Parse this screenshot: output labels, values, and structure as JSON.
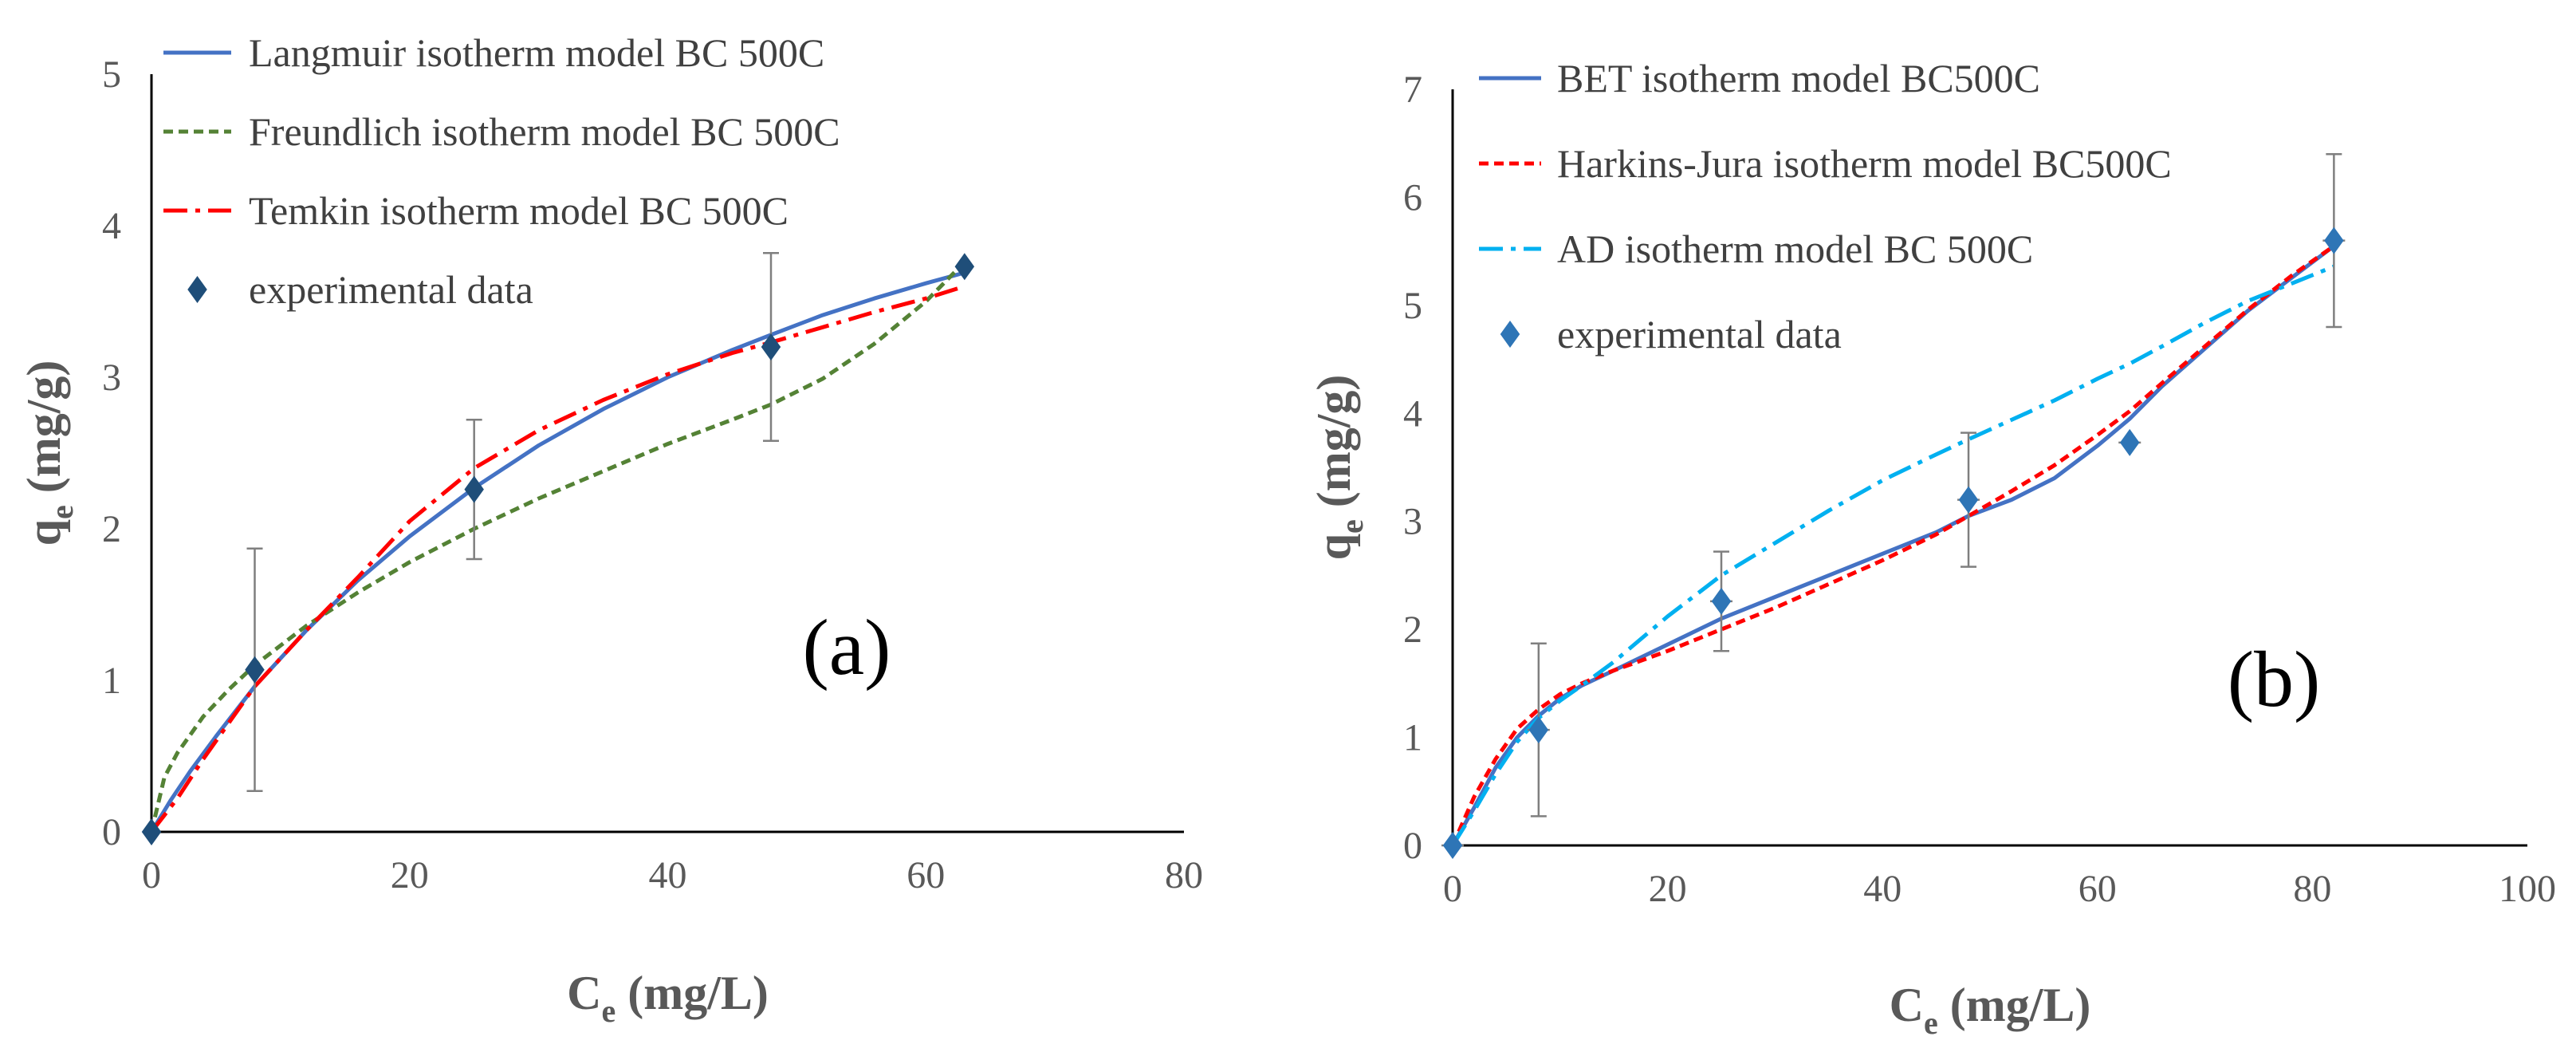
{
  "chart_data": [
    {
      "type": "line",
      "panel_label": "(a)",
      "xlabel_main": "C",
      "xlabel_sub": "e",
      "xlabel_rest": " (mg/L)",
      "ylabel_main": "q",
      "ylabel_sub": "e",
      "ylabel_rest": " (mg/g)",
      "xlim": [
        0,
        80
      ],
      "ylim": [
        0,
        5
      ],
      "xticks": [
        "0",
        "20",
        "40",
        "60",
        "80"
      ],
      "yticks": [
        "0",
        "1",
        "2",
        "3",
        "4",
        "5"
      ],
      "legend_position": "top-left",
      "series": [
        {
          "name": "Langmuir isotherm model BC 500C",
          "style": "solid",
          "color": "#4472C4",
          "x": [
            0,
            1.5,
            3,
            5,
            8,
            12,
            16,
            20,
            25,
            30,
            35,
            40,
            45,
            48,
            52,
            56,
            60,
            63
          ],
          "y": [
            0,
            0.21,
            0.4,
            0.63,
            0.96,
            1.33,
            1.66,
            1.95,
            2.27,
            2.55,
            2.79,
            3.0,
            3.18,
            3.28,
            3.41,
            3.52,
            3.62,
            3.69
          ]
        },
        {
          "name": "Freundlich isotherm model BC 500C",
          "style": "dashed",
          "color": "#548235",
          "x": [
            0,
            1,
            2,
            4,
            6,
            8,
            12,
            16,
            20,
            25,
            30,
            35,
            40,
            45,
            48,
            52,
            56,
            60,
            63
          ],
          "y": [
            0,
            0.36,
            0.52,
            0.76,
            0.94,
            1.1,
            1.36,
            1.58,
            1.78,
            2.0,
            2.2,
            2.38,
            2.56,
            2.72,
            2.82,
            2.99,
            3.22,
            3.5,
            3.76
          ]
        },
        {
          "name": "Temkin isotherm model BC 500C",
          "style": "dashdot",
          "color": "#FF0000",
          "x": [
            0,
            2,
            4,
            6,
            8,
            12,
            16,
            20,
            25,
            30,
            35,
            40,
            45,
            48,
            52,
            56,
            60,
            63
          ],
          "y": [
            0,
            0.22,
            0.48,
            0.72,
            0.96,
            1.33,
            1.68,
            2.05,
            2.4,
            2.65,
            2.85,
            3.02,
            3.16,
            3.23,
            3.33,
            3.43,
            3.52,
            3.6
          ]
        }
      ],
      "experimental": {
        "name": "experimental data",
        "color": "#1F4E79",
        "x": [
          0,
          8,
          25,
          48,
          63
        ],
        "y": [
          0,
          1.07,
          2.26,
          3.2,
          3.73
        ],
        "error": [
          0,
          0.8,
          0.46,
          0.62,
          0
        ]
      }
    },
    {
      "type": "line",
      "panel_label": "(b)",
      "xlabel_main": "C",
      "xlabel_sub": "e",
      "xlabel_rest": " (mg/L)",
      "ylabel_main": "q",
      "ylabel_sub": "e",
      "ylabel_rest": "  (mg/g)",
      "xlim": [
        0,
        100
      ],
      "ylim": [
        0,
        7
      ],
      "xticks": [
        "0",
        "20",
        "40",
        "60",
        "80",
        "100"
      ],
      "yticks": [
        "0",
        "1",
        "2",
        "3",
        "4",
        "5",
        "6",
        "7"
      ],
      "legend_position": "top-left",
      "series": [
        {
          "name": "BET isotherm model BC500C",
          "style": "solid",
          "color": "#4472C4",
          "x": [
            0,
            2,
            4,
            6,
            8,
            10,
            12,
            15,
            20,
            25,
            30,
            35,
            40,
            45,
            48,
            52,
            56,
            60,
            63,
            66,
            70,
            74,
            78,
            82
          ],
          "y": [
            0,
            0.35,
            0.72,
            1.0,
            1.2,
            1.36,
            1.48,
            1.62,
            1.86,
            2.1,
            2.3,
            2.5,
            2.7,
            2.9,
            3.05,
            3.2,
            3.4,
            3.7,
            3.95,
            4.25,
            4.6,
            4.95,
            5.25,
            5.55
          ]
        },
        {
          "name": "Harkins-Jura isotherm model BC500C",
          "style": "dashed",
          "color": "#FF0000",
          "x": [
            0,
            2,
            4,
            6,
            8,
            10,
            12,
            15,
            20,
            25,
            30,
            35,
            40,
            45,
            48,
            52,
            56,
            60,
            63,
            66,
            70,
            74,
            78,
            82
          ],
          "y": [
            0,
            0.45,
            0.8,
            1.08,
            1.26,
            1.4,
            1.5,
            1.62,
            1.8,
            2.0,
            2.2,
            2.42,
            2.64,
            2.88,
            3.05,
            3.28,
            3.52,
            3.8,
            4.02,
            4.28,
            4.62,
            4.96,
            5.27,
            5.55
          ]
        },
        {
          "name": "AD isotherm model BC 500C",
          "style": "dashdot",
          "color": "#00B0F0",
          "x": [
            0,
            2,
            4,
            6,
            8,
            10,
            12,
            15,
            20,
            25,
            30,
            35,
            40,
            45,
            48,
            52,
            56,
            60,
            63,
            66,
            70,
            74,
            78,
            82
          ],
          "y": [
            0,
            0.32,
            0.66,
            0.96,
            1.18,
            1.34,
            1.48,
            1.7,
            2.12,
            2.5,
            2.8,
            3.1,
            3.38,
            3.62,
            3.76,
            3.94,
            4.12,
            4.32,
            4.46,
            4.62,
            4.84,
            5.04,
            5.2,
            5.36
          ]
        }
      ],
      "experimental": {
        "name": "experimental data",
        "color": "#2E75B6",
        "x": [
          0,
          8,
          25,
          48,
          63,
          82
        ],
        "y": [
          0,
          1.07,
          2.26,
          3.2,
          3.73,
          5.6
        ],
        "error": [
          0,
          0.8,
          0.46,
          0.62,
          0,
          0.8
        ]
      }
    }
  ]
}
